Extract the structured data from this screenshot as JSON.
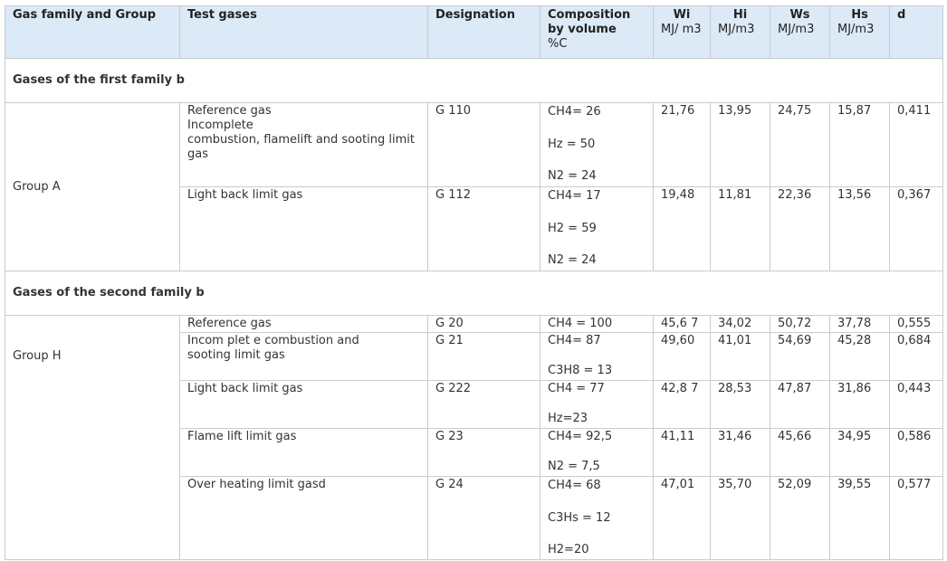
{
  "headers": {
    "family_group": "Gas family and Group",
    "test_gases": "Test gases",
    "designation": "Designation",
    "composition": [
      "Composition",
      "by volume",
      "%C"
    ],
    "wi": {
      "name": "Wi",
      "unit": "MJ/ m3"
    },
    "hi": {
      "name": "Hi",
      "unit": "MJ/m3"
    },
    "ws": {
      "name": "Ws",
      "unit": "MJ/m3"
    },
    "hs": {
      "name": "Hs",
      "unit": "MJ/m3"
    },
    "d": "d"
  },
  "sections": [
    {
      "title": "Gases of the first family b",
      "group": "Group A",
      "rows": [
        {
          "test_gas": [
            "Reference gas",
            "Incomplete",
            "combustion, flamelift and sooting limit gas"
          ],
          "designation": "G 110",
          "composition": [
            "CH4= 26",
            "Hz = 50",
            "N2 = 24"
          ],
          "wi": "21,76",
          "hi": "13,95",
          "ws": "24,75",
          "hs": "15,87",
          "d": "0,411"
        },
        {
          "test_gas": [
            "Light back limit gas"
          ],
          "designation": "G 112",
          "composition": [
            "CH4= 17",
            "H2 = 59",
            "N2 = 24"
          ],
          "wi": "19,48",
          "hi": "11,81",
          "ws": "22,36",
          "hs": "13,56",
          "d": "0,367"
        }
      ]
    },
    {
      "title": "Gases of the second family b",
      "group": "Group H",
      "rows": [
        {
          "test_gas": [
            "Reference gas"
          ],
          "designation": "G 20",
          "composition": [
            "CH4 = 100"
          ],
          "wi": "45,6 7",
          "hi": "34,02",
          "ws": "50,72",
          "hs": "37,78",
          "d": "0,555"
        },
        {
          "test_gas": [
            "Incom plet e combustion and",
            "sooting limit gas"
          ],
          "designation": "G 21",
          "composition": [
            "CH4= 87",
            "C3H8 = 13"
          ],
          "wi": "49,60",
          "hi": "41,01",
          "ws": "54,69",
          "hs": "45,28",
          "d": "0,684"
        },
        {
          "test_gas": [
            "Light back limit gas"
          ],
          "designation": "G 222",
          "composition": [
            "CH4 = 77",
            "Hz=23"
          ],
          "wi": "42,8 7",
          "hi": "28,53",
          "ws": "47,87",
          "hs": "31,86",
          "d": "0,443"
        },
        {
          "test_gas": [
            "Flame lift limit gas"
          ],
          "designation": "G 23",
          "composition": [
            "CH4= 92,5",
            "N2 = 7,5"
          ],
          "wi": "41,11",
          "hi": "31,46",
          "ws": "45,66",
          "hs": "34,95",
          "d": "0,586"
        },
        {
          "test_gas": [
            "Over heating limit gasd"
          ],
          "designation": "G 24",
          "composition": [
            "CH4= 68",
            "C3Hs = 12",
            "H2=20"
          ],
          "wi": "47,01",
          "hi": "35,70",
          "ws": "52,09",
          "hs": "39,55",
          "d": "0,577"
        }
      ]
    }
  ]
}
